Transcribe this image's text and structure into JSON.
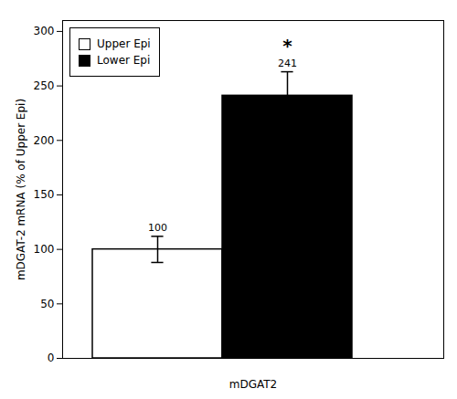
{
  "chart_data": {
    "type": "bar",
    "categories": [
      "Upper Epi",
      "Lower Epi"
    ],
    "values": [
      100,
      241
    ],
    "errors": [
      12,
      22
    ],
    "colors": [
      "#ffffff",
      "#000000"
    ],
    "xlabel": "mDGAT2",
    "ylabel": "mDGAT-2 mRNA (% of Upper Epi)",
    "ylim": [
      0,
      310
    ],
    "yticks": [
      0,
      50,
      100,
      150,
      200,
      250,
      300
    ],
    "data_labels": true,
    "tick_labels": "y",
    "legend": "upper left",
    "annotations": [
      {
        "text": "*",
        "category": "Lower Epi"
      }
    ]
  }
}
